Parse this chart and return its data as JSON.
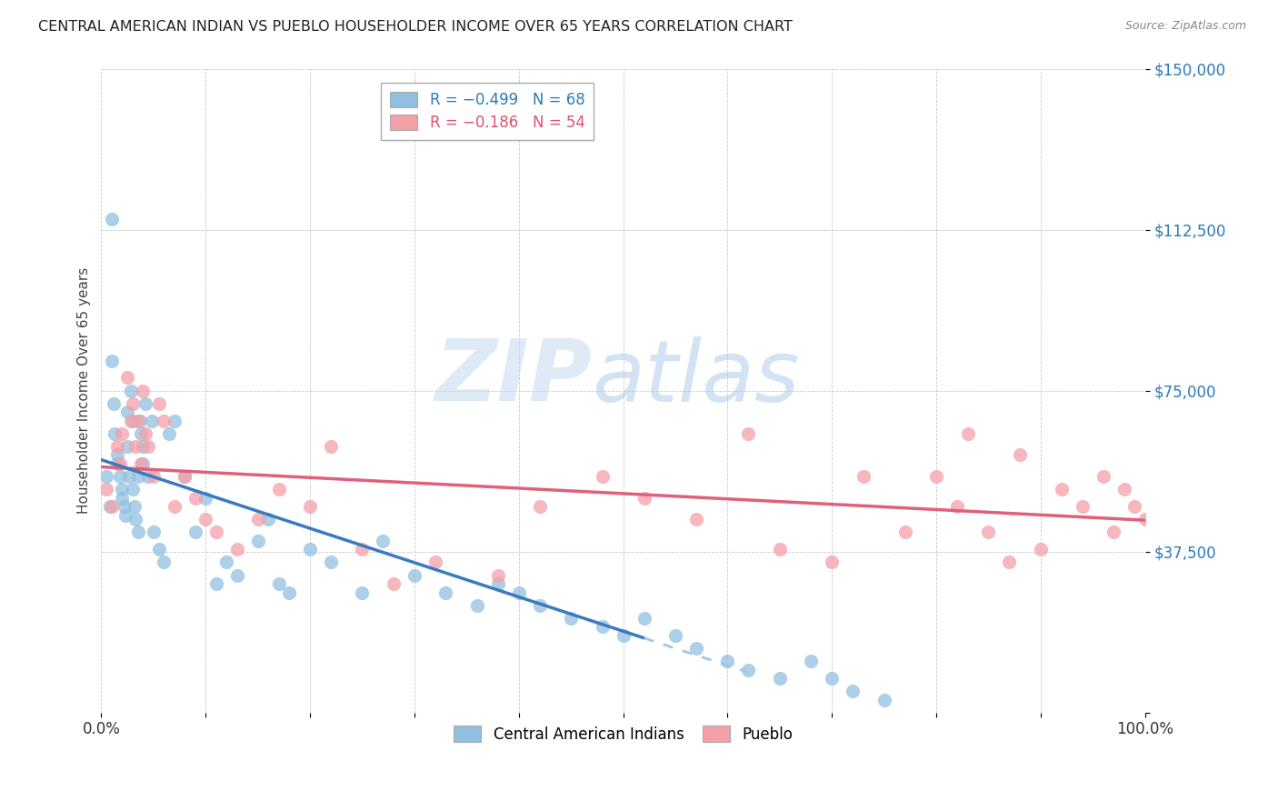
{
  "title": "CENTRAL AMERICAN INDIAN VS PUEBLO HOUSEHOLDER INCOME OVER 65 YEARS CORRELATION CHART",
  "source": "Source: ZipAtlas.com",
  "ylabel": "Householder Income Over 65 years",
  "xlim": [
    0.0,
    1.0
  ],
  "ylim": [
    0,
    150000
  ],
  "yticks": [
    0,
    37500,
    75000,
    112500,
    150000
  ],
  "ytick_labels": [
    "",
    "$37,500",
    "$75,000",
    "$112,500",
    "$150,000"
  ],
  "xtick_positions": [
    0.0,
    0.1,
    0.2,
    0.3,
    0.4,
    0.5,
    0.6,
    0.7,
    0.8,
    0.9,
    1.0
  ],
  "xtick_labels": [
    "0.0%",
    "",
    "",
    "",
    "",
    "",
    "",
    "",
    "",
    "",
    "100.0%"
  ],
  "blue_color": "#92c0e0",
  "pink_color": "#f4a0a8",
  "blue_line_color": "#3a7abf",
  "pink_line_color": "#e0607a",
  "blue_line_dashed_color": "#a0c8e8",
  "watermark_zip": "ZIP",
  "watermark_atlas": "atlas",
  "blue_scatter_x": [
    0.005,
    0.008,
    0.01,
    0.01,
    0.012,
    0.013,
    0.015,
    0.015,
    0.018,
    0.02,
    0.02,
    0.022,
    0.023,
    0.025,
    0.025,
    0.027,
    0.028,
    0.03,
    0.03,
    0.032,
    0.033,
    0.035,
    0.035,
    0.037,
    0.038,
    0.04,
    0.04,
    0.042,
    0.045,
    0.048,
    0.05,
    0.055,
    0.06,
    0.065,
    0.07,
    0.08,
    0.09,
    0.1,
    0.11,
    0.12,
    0.13,
    0.15,
    0.16,
    0.17,
    0.18,
    0.2,
    0.22,
    0.25,
    0.27,
    0.3,
    0.33,
    0.36,
    0.38,
    0.4,
    0.42,
    0.45,
    0.48,
    0.5,
    0.52,
    0.55,
    0.57,
    0.6,
    0.62,
    0.65,
    0.68,
    0.7,
    0.72,
    0.75
  ],
  "blue_scatter_y": [
    55000,
    48000,
    115000,
    82000,
    72000,
    65000,
    60000,
    58000,
    55000,
    52000,
    50000,
    48000,
    46000,
    62000,
    70000,
    55000,
    75000,
    68000,
    52000,
    48000,
    45000,
    42000,
    55000,
    68000,
    65000,
    58000,
    62000,
    72000,
    55000,
    68000,
    42000,
    38000,
    35000,
    65000,
    68000,
    55000,
    42000,
    50000,
    30000,
    35000,
    32000,
    40000,
    45000,
    30000,
    28000,
    38000,
    35000,
    28000,
    40000,
    32000,
    28000,
    25000,
    30000,
    28000,
    25000,
    22000,
    20000,
    18000,
    22000,
    18000,
    15000,
    12000,
    10000,
    8000,
    12000,
    8000,
    5000,
    3000
  ],
  "pink_scatter_x": [
    0.005,
    0.01,
    0.015,
    0.018,
    0.02,
    0.025,
    0.028,
    0.03,
    0.033,
    0.035,
    0.038,
    0.04,
    0.042,
    0.045,
    0.05,
    0.055,
    0.06,
    0.07,
    0.08,
    0.09,
    0.1,
    0.11,
    0.13,
    0.15,
    0.17,
    0.2,
    0.22,
    0.25,
    0.28,
    0.32,
    0.38,
    0.42,
    0.48,
    0.52,
    0.57,
    0.62,
    0.65,
    0.7,
    0.73,
    0.77,
    0.8,
    0.82,
    0.83,
    0.85,
    0.87,
    0.88,
    0.9,
    0.92,
    0.94,
    0.96,
    0.97,
    0.98,
    0.99,
    1.0
  ],
  "pink_scatter_y": [
    52000,
    48000,
    62000,
    58000,
    65000,
    78000,
    68000,
    72000,
    62000,
    68000,
    58000,
    75000,
    65000,
    62000,
    55000,
    72000,
    68000,
    48000,
    55000,
    50000,
    45000,
    42000,
    38000,
    45000,
    52000,
    48000,
    62000,
    38000,
    30000,
    35000,
    32000,
    48000,
    55000,
    50000,
    45000,
    65000,
    38000,
    35000,
    55000,
    42000,
    55000,
    48000,
    65000,
    42000,
    35000,
    60000,
    38000,
    52000,
    48000,
    55000,
    42000,
    52000,
    48000,
    45000
  ],
  "blue_line_solid_end": 0.52,
  "blue_line_dashed_end": 0.62
}
